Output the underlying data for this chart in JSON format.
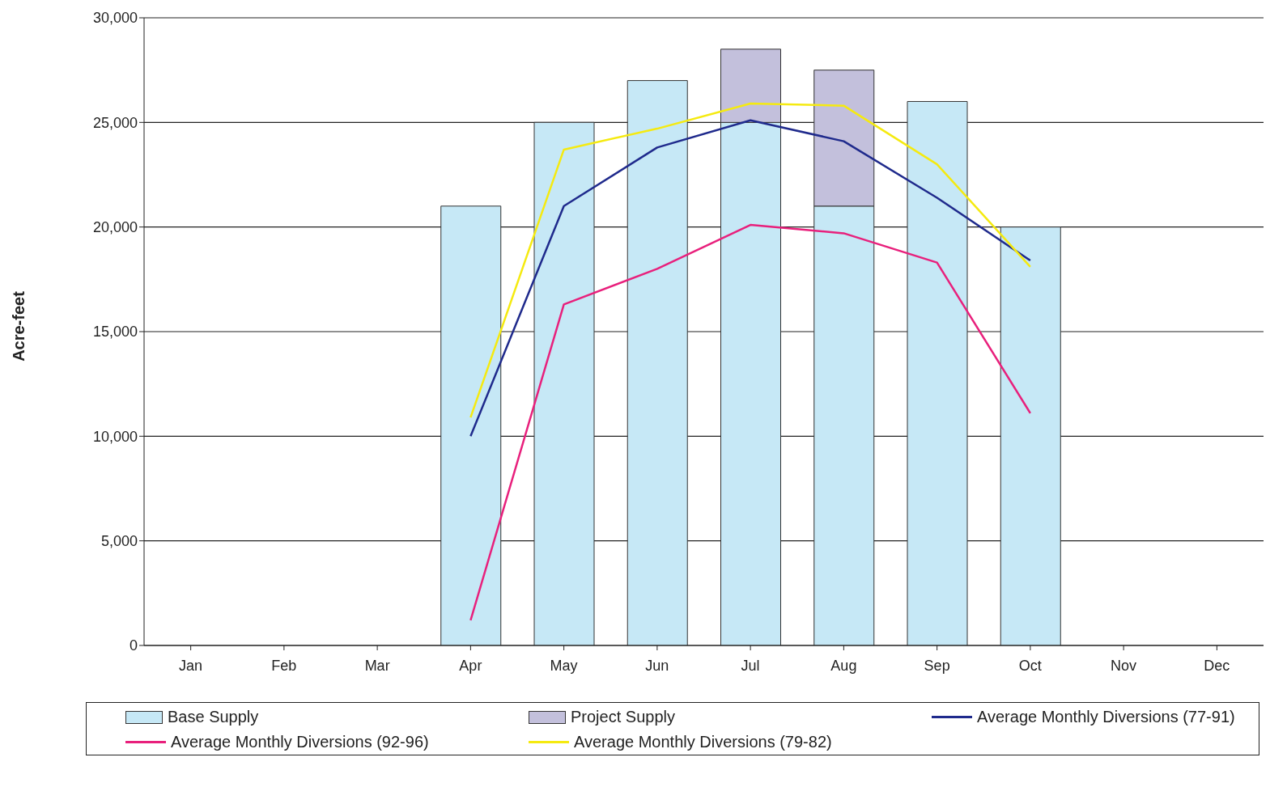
{
  "chart_data": {
    "type": "bar",
    "ylabel": "Acre-feet",
    "stacked": true,
    "categories": [
      "Jan",
      "Feb",
      "Mar",
      "Apr",
      "May",
      "Jun",
      "Jul",
      "Aug",
      "Sep",
      "Oct",
      "Nov",
      "Dec"
    ],
    "series": [
      {
        "name": "Base Supply",
        "color": "#c6e8f6",
        "values": [
          null,
          null,
          null,
          21000,
          25000,
          27000,
          25000,
          21000,
          26000,
          20000,
          null,
          null
        ]
      },
      {
        "name": "Project Supply",
        "color": "#c3c0dc",
        "values": [
          null,
          null,
          null,
          null,
          null,
          null,
          3500,
          6500,
          null,
          null,
          null,
          null
        ]
      },
      {
        "name": "Average Monthly Diversions (77-91)",
        "type": "line",
        "color": "#1f2a8c",
        "values": [
          null,
          null,
          null,
          10000,
          21000,
          23800,
          25100,
          24100,
          21400,
          18400,
          null,
          null
        ]
      },
      {
        "name": "Average Monthly Diversions (92-96)",
        "type": "line",
        "color": "#e8207c",
        "values": [
          null,
          null,
          null,
          1200,
          16300,
          18000,
          20100,
          19700,
          18300,
          11100,
          null,
          null
        ]
      },
      {
        "name": "Average Monthly Diversions (79-82)",
        "type": "line",
        "color": "#f5ea10",
        "values": [
          null,
          null,
          null,
          10900,
          23700,
          24700,
          25900,
          25800,
          23000,
          18100,
          null,
          null
        ]
      }
    ],
    "ylim": [
      0,
      30000
    ],
    "yticks": [
      0,
      {
        "value": 5000,
        "label": "5,000"
      },
      {
        "value": 10000,
        "label": "10,000"
      },
      {
        "value": 15000,
        "label": "15,000"
      },
      {
        "value": 20000,
        "label": "20,000"
      },
      {
        "value": 25000,
        "label": "25,000"
      },
      {
        "value": 30000,
        "label": "30,000"
      }
    ],
    "grid": "y",
    "legend": "bottom",
    "marker": "none",
    "line_style": "solid"
  }
}
